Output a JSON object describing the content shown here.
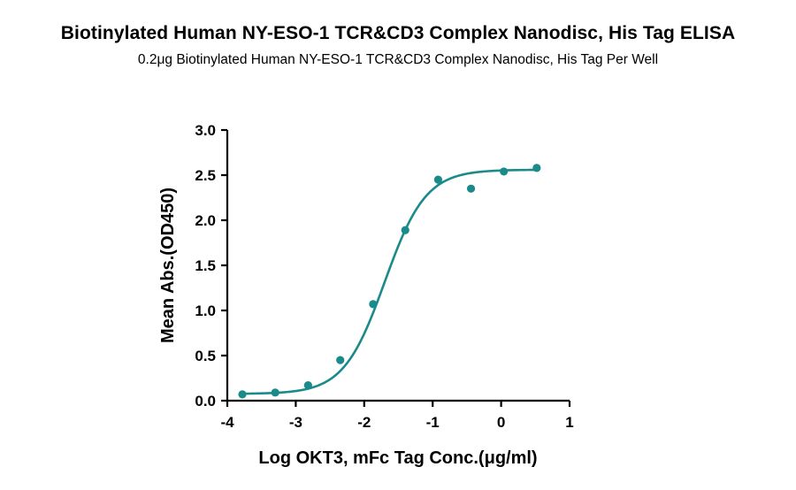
{
  "title": "Biotinylated Human NY-ESO-1 TCR&CD3 Complex Nanodisc, His Tag ELISA",
  "subtitle": "0.2μg Biotinylated Human NY-ESO-1 TCR&CD3 Complex Nanodisc, His Tag Per Well",
  "colors": {
    "series": "#1b8a8a",
    "axis": "#000000"
  },
  "chart_data": {
    "type": "scatter",
    "title": "Biotinylated Human NY-ESO-1 TCR&CD3 Complex Nanodisc, His Tag ELISA",
    "subtitle": "0.2μg Biotinylated Human NY-ESO-1 TCR&CD3 Complex Nanodisc, His Tag Per Well",
    "xlabel": "Log OKT3, mFc Tag Conc.(μg/ml)",
    "ylabel": "Mean Abs.(OD450)",
    "xlim": [
      -4,
      1
    ],
    "ylim": [
      0,
      3
    ],
    "x_ticks": [
      -4,
      -3,
      -2,
      -1,
      0,
      1
    ],
    "x_tick_labels": [
      "-4",
      "-3",
      "-2",
      "-1",
      "0",
      "1"
    ],
    "y_ticks": [
      0,
      0.5,
      1,
      1.5,
      2,
      2.5,
      3
    ],
    "y_tick_labels": [
      "0.0",
      "0.5",
      "1.0",
      "1.5",
      "2.0",
      "2.5",
      "3.0"
    ],
    "grid": false,
    "series": [
      {
        "x": [
          -3.78,
          -3.3,
          -2.82,
          -2.35,
          -1.87,
          -1.4,
          -0.92,
          -0.44,
          0.04,
          0.52
        ],
        "y": [
          0.07,
          0.09,
          0.17,
          0.45,
          1.07,
          1.89,
          2.45,
          2.35,
          2.54,
          2.58
        ],
        "fit": "4PL",
        "fit_params": {
          "bottom": 0.075,
          "top": 2.56,
          "log_ec50": -1.7,
          "hill_slope": 1.45
        }
      }
    ]
  }
}
